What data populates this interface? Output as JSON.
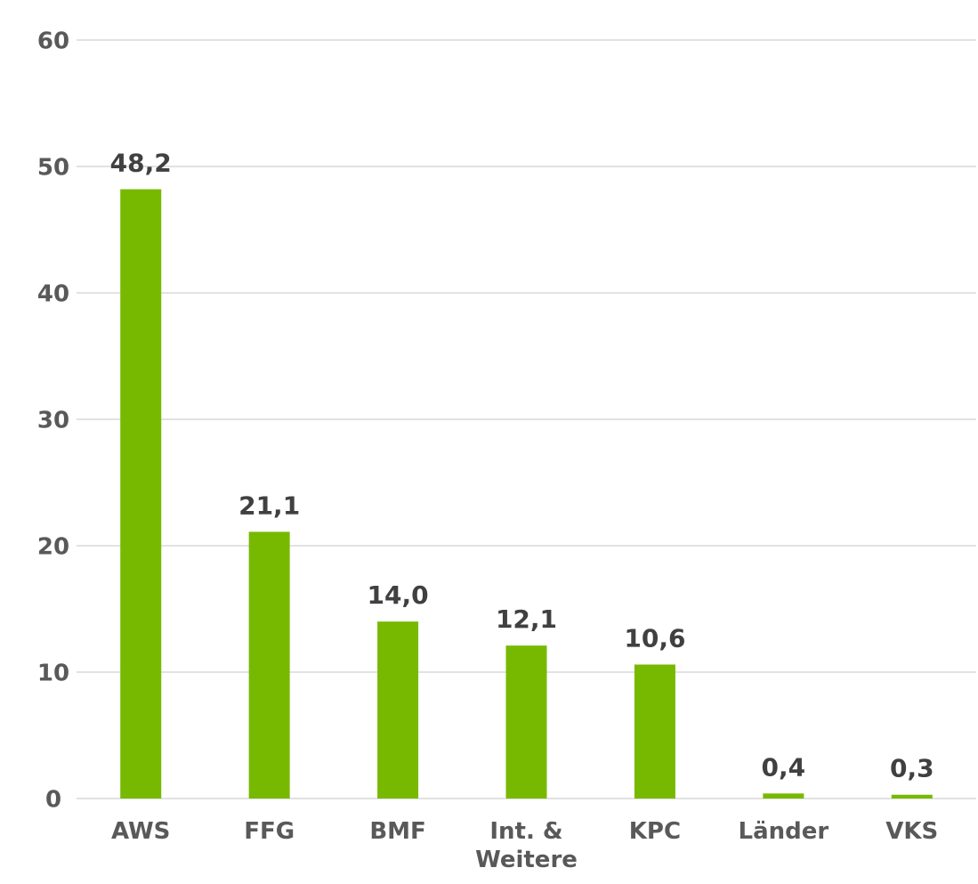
{
  "chart_data": {
    "type": "bar",
    "categories": [
      "AWS",
      "FFG",
      "BMF",
      "Int. & Weitere",
      "KPC",
      "Länder",
      "VKS"
    ],
    "values": [
      48.2,
      21.1,
      14.0,
      12.1,
      10.6,
      0.4,
      0.3
    ],
    "value_labels": [
      "48,2",
      "21,1",
      "14,0",
      "12,1",
      "10,6",
      "0,4",
      "0,3"
    ],
    "color": "#77b900",
    "ylim": [
      0,
      60
    ],
    "yticks": [
      0,
      10,
      20,
      30,
      40,
      50,
      60
    ],
    "grid": true
  }
}
